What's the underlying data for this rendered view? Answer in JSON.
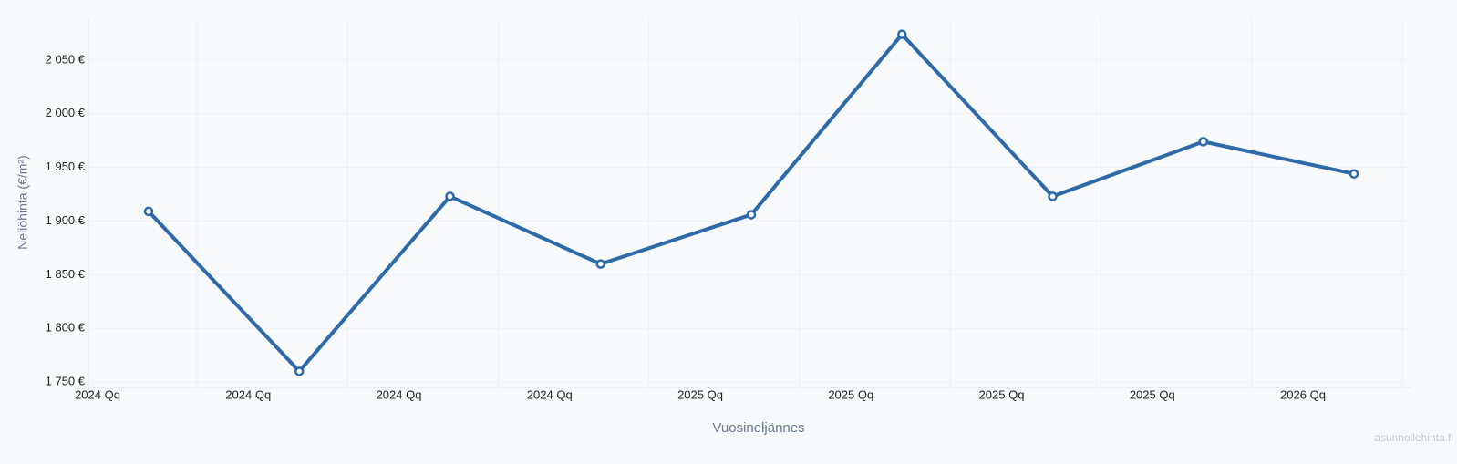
{
  "chart_data": {
    "type": "line",
    "y_label": "Neliöhinta (€/m²)",
    "x_label": "Vuosineljännes",
    "watermark": "asunnollehinta.fi",
    "categories": [
      "2024 Qq",
      "2024 Qq",
      "2024 Qq",
      "2024 Qq",
      "2025 Qq",
      "2025 Qq",
      "2025 Qq",
      "2025 Qq",
      "2026 Qq"
    ],
    "series": [
      {
        "name": "Neliöhinta",
        "color": "#2e6aa8",
        "values": [
          1909,
          1760,
          1923,
          1860,
          1906,
          2074,
          1923,
          1974,
          1944
        ]
      }
    ],
    "ylim": [
      1745,
      2089
    ],
    "yticks": [
      {
        "value": 1750,
        "label": "1 750 €"
      },
      {
        "value": 1800,
        "label": "1 800 €"
      },
      {
        "value": 1850,
        "label": "1 850 €"
      },
      {
        "value": 1900,
        "label": "1 900 €"
      },
      {
        "value": 1950,
        "label": "1 950 €"
      },
      {
        "value": 2000,
        "label": "2 000 €"
      },
      {
        "value": 2050,
        "label": "2 050 €"
      }
    ],
    "grid": true
  }
}
